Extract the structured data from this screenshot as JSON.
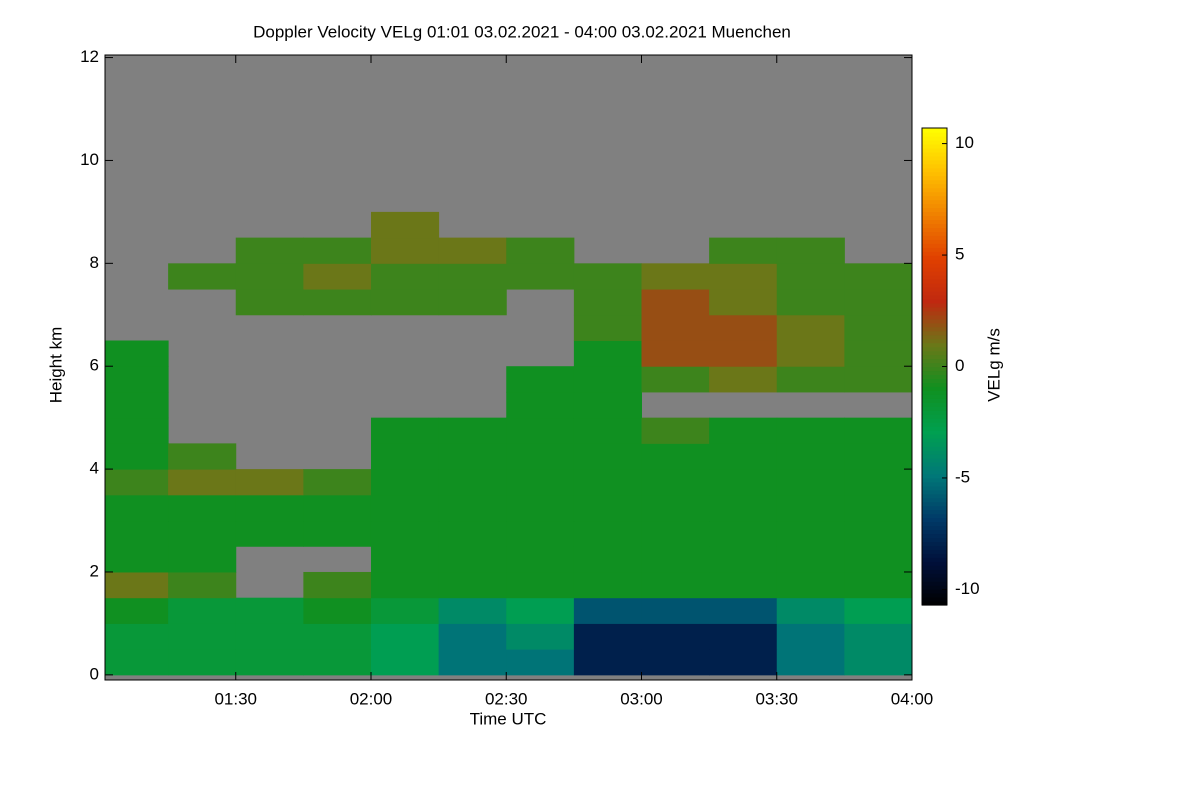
{
  "chart_data": {
    "type": "heatmap",
    "title": "Doppler Velocity VELg   01:01 03.02.2021 - 04:00 03.02.2021 Muenchen",
    "x_label": "Time UTC",
    "y_label": "Height km",
    "x": [
      "01:01",
      "01:15",
      "01:30",
      "01:45",
      "02:00",
      "02:15",
      "02:30",
      "02:45",
      "03:00",
      "03:15",
      "03:30",
      "03:45",
      "04:00"
    ],
    "xlim": [
      "01:01",
      "04:00"
    ],
    "xticks": [
      "01:30",
      "02:00",
      "02:30",
      "03:00",
      "03:30",
      "04:00"
    ],
    "y": [
      0,
      0.5,
      1,
      1.5,
      2,
      2.5,
      3,
      3.5,
      4,
      4.5,
      5,
      5.5,
      6,
      6.5,
      7,
      7.5,
      8,
      8.5,
      9,
      9.5,
      10,
      10.5,
      11,
      11.5,
      12
    ],
    "ylim": [
      -0.1,
      12.05
    ],
    "yticks": [
      0,
      2,
      4,
      6,
      8,
      10,
      12
    ],
    "z": [
      [
        -2,
        -2,
        -2,
        -2,
        -3,
        -5,
        -5,
        -8,
        -8,
        -8,
        -5,
        -4
      ],
      [
        -2,
        -2,
        -2,
        -2,
        -3,
        -5,
        -4,
        -8,
        -8,
        -8,
        -5,
        -4
      ],
      [
        -1,
        -2,
        -2,
        -1,
        -2,
        -4,
        -3,
        -6,
        -6,
        -6,
        -4,
        -3
      ],
      [
        1,
        0,
        null,
        0,
        -1,
        -1,
        -1,
        -1,
        -1,
        -1,
        -1,
        -1
      ],
      [
        -1,
        -1,
        null,
        null,
        -1,
        -1,
        -1,
        -1,
        -1,
        -1,
        -1,
        -1
      ],
      [
        -1,
        -1,
        -1,
        -1,
        -1,
        -1,
        -1,
        -1,
        -1,
        -1,
        -1,
        -1
      ],
      [
        -1,
        -1,
        -1,
        -1,
        -1,
        -1,
        -1,
        -1,
        -1,
        -1,
        -1,
        -1
      ],
      [
        0,
        1,
        1,
        0,
        -1,
        -1,
        -1,
        -1,
        -1,
        -1,
        -1,
        -1
      ],
      [
        -1,
        0,
        null,
        null,
        -1,
        -1,
        -1,
        -1,
        -1,
        -1,
        -1,
        -1
      ],
      [
        -1,
        null,
        null,
        null,
        -1,
        -1,
        -1,
        -1,
        0,
        -1,
        -1,
        -1
      ],
      [
        -1,
        null,
        null,
        null,
        null,
        null,
        -1,
        -1,
        null,
        null,
        null,
        null
      ],
      [
        -1,
        null,
        null,
        null,
        null,
        null,
        -1,
        -1,
        0,
        1,
        0,
        0
      ],
      [
        -1,
        null,
        null,
        null,
        null,
        null,
        null,
        -1,
        2,
        2,
        1,
        0
      ],
      [
        null,
        null,
        null,
        null,
        null,
        null,
        null,
        0,
        2,
        2,
        1,
        0
      ],
      [
        null,
        null,
        0,
        0,
        0,
        0,
        null,
        0,
        2,
        1,
        0,
        0
      ],
      [
        null,
        0,
        0,
        1,
        0,
        0,
        0,
        0,
        1,
        1,
        0,
        0
      ],
      [
        null,
        null,
        0,
        0,
        1,
        1,
        0,
        null,
        null,
        0,
        0,
        null
      ],
      [
        null,
        null,
        null,
        null,
        1,
        null,
        null,
        null,
        null,
        null,
        null,
        null
      ],
      [
        null,
        null,
        null,
        null,
        null,
        null,
        null,
        null,
        null,
        null,
        null,
        null
      ],
      [
        null,
        null,
        null,
        null,
        null,
        null,
        null,
        null,
        null,
        null,
        null,
        null
      ],
      [
        null,
        null,
        null,
        null,
        null,
        null,
        null,
        null,
        null,
        null,
        null,
        null
      ],
      [
        null,
        null,
        null,
        null,
        null,
        null,
        null,
        null,
        null,
        null,
        null,
        null
      ],
      [
        null,
        null,
        null,
        null,
        null,
        null,
        null,
        null,
        null,
        null,
        null,
        null
      ],
      [
        null,
        null,
        null,
        null,
        null,
        null,
        null,
        null,
        null,
        null,
        null,
        null
      ]
    ],
    "missing_color": "#808080",
    "colorbar": {
      "label": "VELg m/s",
      "lim": [
        -10.7,
        10.7
      ],
      "ticks": [
        -10,
        -5,
        0,
        5,
        10
      ],
      "colors": [
        "#000000",
        "#00103a",
        "#003a68",
        "#007878",
        "#00a050",
        "#109020",
        "#6a7818",
        "#c02810",
        "#e04000",
        "#f08000",
        "#ffc000",
        "#ffff00"
      ]
    }
  }
}
